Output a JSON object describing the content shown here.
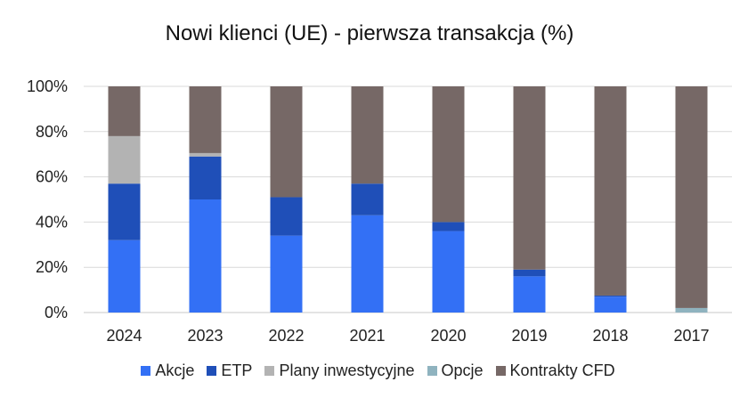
{
  "chart_data": {
    "type": "bar",
    "stacked": true,
    "percent": true,
    "title": "Nowi klienci (UE) - pierwsza transakcja (%)",
    "categories": [
      "2024",
      "2023",
      "2022",
      "2021",
      "2020",
      "2019",
      "2018",
      "2017"
    ],
    "series": [
      {
        "name": "Akcje",
        "color": "#3370f5",
        "values": [
          32,
          50,
          34,
          43,
          36,
          16,
          7,
          0
        ]
      },
      {
        "name": "ETP",
        "color": "#1f4fb8",
        "values": [
          25,
          19,
          17,
          14,
          4,
          3,
          0.5,
          0
        ]
      },
      {
        "name": "Plany inwestycyjne",
        "color": "#b3b3b3",
        "values": [
          21,
          1.5,
          0,
          0,
          0,
          0,
          0,
          0
        ]
      },
      {
        "name": "Opcje",
        "color": "#8fb3bf",
        "values": [
          0,
          0,
          0,
          0,
          0,
          0,
          0,
          2
        ]
      },
      {
        "name": "Kontrakty CFD",
        "color": "#766866",
        "values": [
          22,
          29.5,
          49,
          43,
          60,
          81,
          92.5,
          98
        ]
      }
    ],
    "y_ticks": [
      "0%",
      "20%",
      "40%",
      "60%",
      "80%",
      "100%"
    ],
    "ylim": [
      0,
      100
    ],
    "grid": true,
    "legend_position": "bottom"
  }
}
